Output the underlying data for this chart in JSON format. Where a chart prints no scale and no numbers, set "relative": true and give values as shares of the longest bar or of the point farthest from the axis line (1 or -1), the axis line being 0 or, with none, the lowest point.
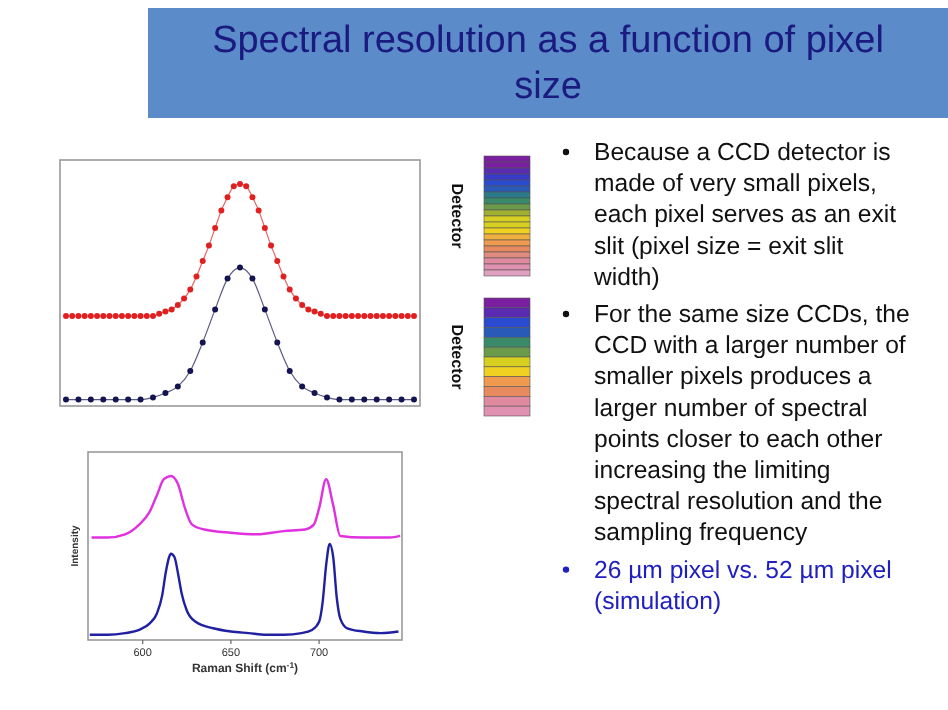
{
  "chart_data": [
    {
      "type": "line",
      "title": "Spectral resolution as a function of pixel size",
      "relative": true,
      "marker": "circle",
      "annotations": [
        "Detector",
        "Detector"
      ],
      "categories": [
        null,
        null,
        null,
        null,
        null,
        null,
        null,
        null,
        null,
        null,
        null,
        null,
        null,
        null,
        null,
        null,
        null,
        null,
        null,
        null,
        null,
        null,
        null,
        null,
        null,
        null,
        null,
        null,
        null,
        null,
        null,
        null,
        null,
        null,
        null,
        null,
        null,
        null,
        null,
        null,
        null,
        null,
        null,
        null,
        null,
        null,
        null,
        null,
        null,
        null,
        null,
        null,
        null,
        null,
        null,
        null,
        null
      ],
      "series": [
        {
          "color": "#e02020",
          "values": [
            0.4,
            0.4,
            0.4,
            0.4,
            0.4,
            0.4,
            0.4,
            0.4,
            0.4,
            0.4,
            0.4,
            0.4,
            0.4,
            0.4,
            0.4,
            0.41,
            0.42,
            0.43,
            0.45,
            0.48,
            0.52,
            0.58,
            0.65,
            0.72,
            0.8,
            0.88,
            0.94,
            0.99,
            1.0,
            0.99,
            0.94,
            0.88,
            0.8,
            0.72,
            0.65,
            0.58,
            0.52,
            0.48,
            0.45,
            0.43,
            0.42,
            0.41,
            0.4,
            0.4,
            0.4,
            0.4,
            0.4,
            0.4,
            0.4,
            0.4,
            0.4,
            0.4,
            0.4,
            0.4,
            0.4,
            0.4,
            0.4
          ]
        },
        {
          "color": "#141450",
          "values": [
            0.02,
            null,
            0.02,
            null,
            0.02,
            null,
            0.02,
            null,
            0.02,
            null,
            0.02,
            null,
            0.02,
            null,
            0.03,
            null,
            0.05,
            null,
            0.08,
            null,
            0.15,
            null,
            0.28,
            null,
            0.43,
            null,
            0.57,
            null,
            0.62,
            null,
            0.57,
            null,
            0.43,
            null,
            0.28,
            null,
            0.15,
            null,
            0.08,
            null,
            0.05,
            null,
            0.03,
            null,
            0.02,
            null,
            0.02,
            null,
            0.02,
            null,
            0.02,
            null,
            0.02,
            null,
            0.02,
            null,
            0.02
          ]
        }
      ]
    },
    {
      "type": "line",
      "relative": true,
      "xlabel": "Raman Shift (cm$^{-1}$)",
      "ylabel": "Intensity",
      "xlim": [
        569,
        747
      ],
      "xticks": [
        600,
        650,
        700
      ],
      "tick_labels": "x",
      "series": [
        {
          "color": "#e030e0",
          "x": [
            571,
            580,
            590,
            598,
            604,
            608,
            612,
            616,
            620,
            624,
            628,
            635,
            650,
            665,
            680,
            692,
            697,
            700,
            704,
            708,
            712,
            725,
            740,
            746
          ],
          "values": [
            0.62,
            0.62,
            0.64,
            0.7,
            0.78,
            0.88,
            0.98,
            1.0,
            0.95,
            0.8,
            0.7,
            0.67,
            0.65,
            0.64,
            0.66,
            0.67,
            0.7,
            0.8,
            0.98,
            0.82,
            0.63,
            0.62,
            0.62,
            0.63
          ]
        },
        {
          "color": "#2020a0",
          "x": [
            570,
            580,
            590,
            598,
            604,
            608,
            611,
            613,
            615,
            616,
            618,
            620,
            622,
            625,
            630,
            640,
            650,
            660,
            670,
            680,
            690,
            696,
            700,
            702,
            704,
            706,
            708,
            710,
            712,
            716,
            725,
            735,
            745
          ],
          "values": [
            0.02,
            0.02,
            0.03,
            0.05,
            0.09,
            0.15,
            0.26,
            0.4,
            0.5,
            0.52,
            0.5,
            0.4,
            0.28,
            0.17,
            0.1,
            0.06,
            0.04,
            0.03,
            0.02,
            0.02,
            0.03,
            0.05,
            0.1,
            0.22,
            0.45,
            0.58,
            0.5,
            0.25,
            0.12,
            0.06,
            0.04,
            0.03,
            0.04
          ]
        }
      ]
    },
    {
      "type": "other",
      "annotations": [
        "Because a CCD detector is made of very small pixels, each pixel serves as an exit slit (pixel size = exit slit width)",
        "For the same size CCDs, the CCD with a larger number of smaller pixels produces a larger number of spectral points closer to each other increasing the limiting spectral resolution and the sampling frequency",
        "26 µm pixel vs. 52 µm pixel (simulation)"
      ]
    }
  ]
}
